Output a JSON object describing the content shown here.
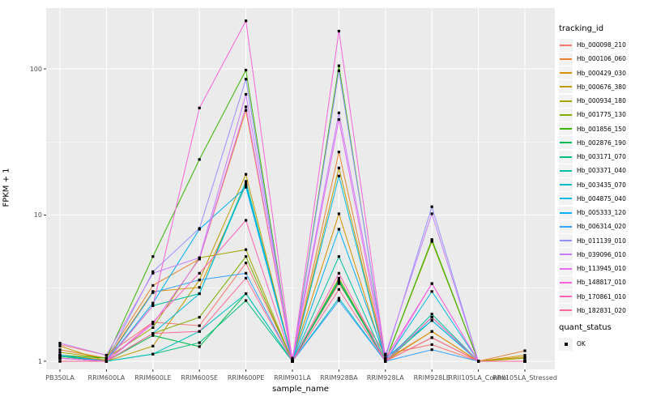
{
  "figure": {
    "y_axis_title": "FPKM + 1",
    "x_axis_title": "sample_name",
    "legend_title": "tracking_id",
    "quant_legend_title": "quant_status",
    "quant_ok_label": "OK",
    "panel_bg_color": "#EBEBEB",
    "grid_color": "#FFFFFF",
    "tick_text_color": "#4d4d4d",
    "point_color": "#000000"
  },
  "chart_data": {
    "type": "line",
    "title": "",
    "xlabel": "sample_name",
    "ylabel": "FPKM + 1",
    "y_scale": "log10",
    "ylim": [
      1,
      300
    ],
    "y_ticks": [
      1,
      10,
      100
    ],
    "y_minor_ticks": [
      3.162,
      31.62
    ],
    "grid": true,
    "legend_position": "right",
    "point_shape": "filled-square",
    "point_legend": {
      "title": "quant_status",
      "label": "OK"
    },
    "categories": [
      "PB350LA",
      "RRIM600LA",
      "RRIM600LE",
      "RRIM600SE",
      "RRIM600PE",
      "RRIM901LA",
      "RRIM928BA",
      "RRIM928LA",
      "RRIM928LE",
      "RRII105LA_Control",
      "RRII105LA_Stressed"
    ],
    "series": [
      {
        "name": "Hb_000098_210",
        "color": "#F8766D",
        "values": [
          1.3,
          1.1,
          1.85,
          1.75,
          4.7,
          1.02,
          3.4,
          1.12,
          1.3,
          1.0,
          1.05
        ]
      },
      {
        "name": "Hb_000106_060",
        "color": "#EA8331",
        "values": [
          1.2,
          1.05,
          3.3,
          5.0,
          52,
          1.0,
          27,
          1.02,
          1.6,
          1.0,
          1.18
        ]
      },
      {
        "name": "Hb_000429_030",
        "color": "#D89000",
        "values": [
          1.1,
          1.02,
          3.0,
          3.2,
          16,
          1.03,
          10.2,
          1.0,
          1.6,
          1.0,
          1.1
        ]
      },
      {
        "name": "Hb_000676_380",
        "color": "#C09B00",
        "values": [
          1.27,
          1.0,
          1.27,
          3.6,
          19,
          1.0,
          21,
          1.0,
          1.45,
          1.0,
          1.07
        ]
      },
      {
        "name": "Hb_000934_180",
        "color": "#A3A500",
        "values": [
          1.15,
          1.05,
          1.7,
          5.1,
          5.8,
          1.0,
          3.7,
          1.0,
          6.6,
          1.0,
          1.05
        ]
      },
      {
        "name": "Hb_001775_130",
        "color": "#7CAE00",
        "values": [
          1.1,
          1.0,
          1.55,
          2.0,
          5.2,
          1.0,
          3.5,
          1.0,
          6.7,
          1.0,
          1.0
        ]
      },
      {
        "name": "Hb_001856_150",
        "color": "#39B600",
        "values": [
          1.1,
          1.05,
          5.2,
          24,
          98,
          1.0,
          105,
          1.0,
          6.8,
          1.0,
          1.0
        ]
      },
      {
        "name": "Hb_002876_190",
        "color": "#00BB4E",
        "values": [
          1.08,
          1.0,
          1.5,
          1.26,
          2.9,
          1.0,
          3.5,
          1.0,
          2.0,
          1.0,
          1.0
        ]
      },
      {
        "name": "Hb_003171_070",
        "color": "#00BF7D",
        "values": [
          1.05,
          1.0,
          1.12,
          1.34,
          2.6,
          1.0,
          3.6,
          1.0,
          1.9,
          1.0,
          1.0
        ]
      },
      {
        "name": "Hb_003371_040",
        "color": "#00C1A3",
        "values": [
          1.1,
          1.0,
          2.4,
          2.9,
          17,
          1.0,
          5.2,
          1.0,
          2.1,
          1.0,
          1.0
        ]
      },
      {
        "name": "Hb_003435_070",
        "color": "#00BFC4",
        "values": [
          1.05,
          1.0,
          1.12,
          1.6,
          2.9,
          1.0,
          2.7,
          1.0,
          2.0,
          1.0,
          1.0
        ]
      },
      {
        "name": "Hb_004875_040",
        "color": "#00BAE0",
        "values": [
          1.05,
          1.0,
          1.55,
          2.9,
          16.3,
          1.0,
          18.5,
          1.0,
          3.0,
          1.0,
          1.0
        ]
      },
      {
        "name": "Hb_005333_120",
        "color": "#00B0F6",
        "values": [
          1.1,
          1.0,
          2.5,
          8.0,
          15.5,
          1.0,
          8.0,
          1.05,
          1.9,
          1.0,
          1.0
        ]
      },
      {
        "name": "Hb_006314_020",
        "color": "#35A2FF",
        "values": [
          1.05,
          1.0,
          2.95,
          3.6,
          4.0,
          1.0,
          2.6,
          1.0,
          1.2,
          1.0,
          1.0
        ]
      },
      {
        "name": "Hb_011139_010",
        "color": "#9590FF",
        "values": [
          1.05,
          1.0,
          4.1,
          8.1,
          85,
          1.0,
          97,
          1.05,
          11.4,
          1.0,
          1.0
        ]
      },
      {
        "name": "Hb_039096_010",
        "color": "#C77CFF",
        "values": [
          1.33,
          1.1,
          4.0,
          5.1,
          67,
          1.05,
          50,
          1.1,
          10.2,
          1.0,
          1.0
        ]
      },
      {
        "name": "Hb_113945_010",
        "color": "#E76BF3",
        "values": [
          1.0,
          1.0,
          1.8,
          5.0,
          55,
          1.0,
          45,
          1.0,
          3.4,
          1.0,
          1.0
        ]
      },
      {
        "name": "Hb_148817_010",
        "color": "#FA62DB",
        "values": [
          1.05,
          1.0,
          2.4,
          54,
          213,
          1.0,
          181,
          1.05,
          3.4,
          1.0,
          1.0
        ]
      },
      {
        "name": "Hb_170861_010",
        "color": "#FF62BC",
        "values": [
          1.0,
          1.0,
          1.85,
          4.0,
          9.2,
          1.0,
          4.0,
          1.0,
          2.0,
          1.0,
          1.0
        ]
      },
      {
        "name": "Hb_182831_020",
        "color": "#FF6A98",
        "values": [
          1.0,
          1.0,
          1.55,
          1.6,
          3.7,
          1.0,
          3.1,
          1.0,
          1.45,
          1.0,
          1.0
        ]
      }
    ]
  }
}
